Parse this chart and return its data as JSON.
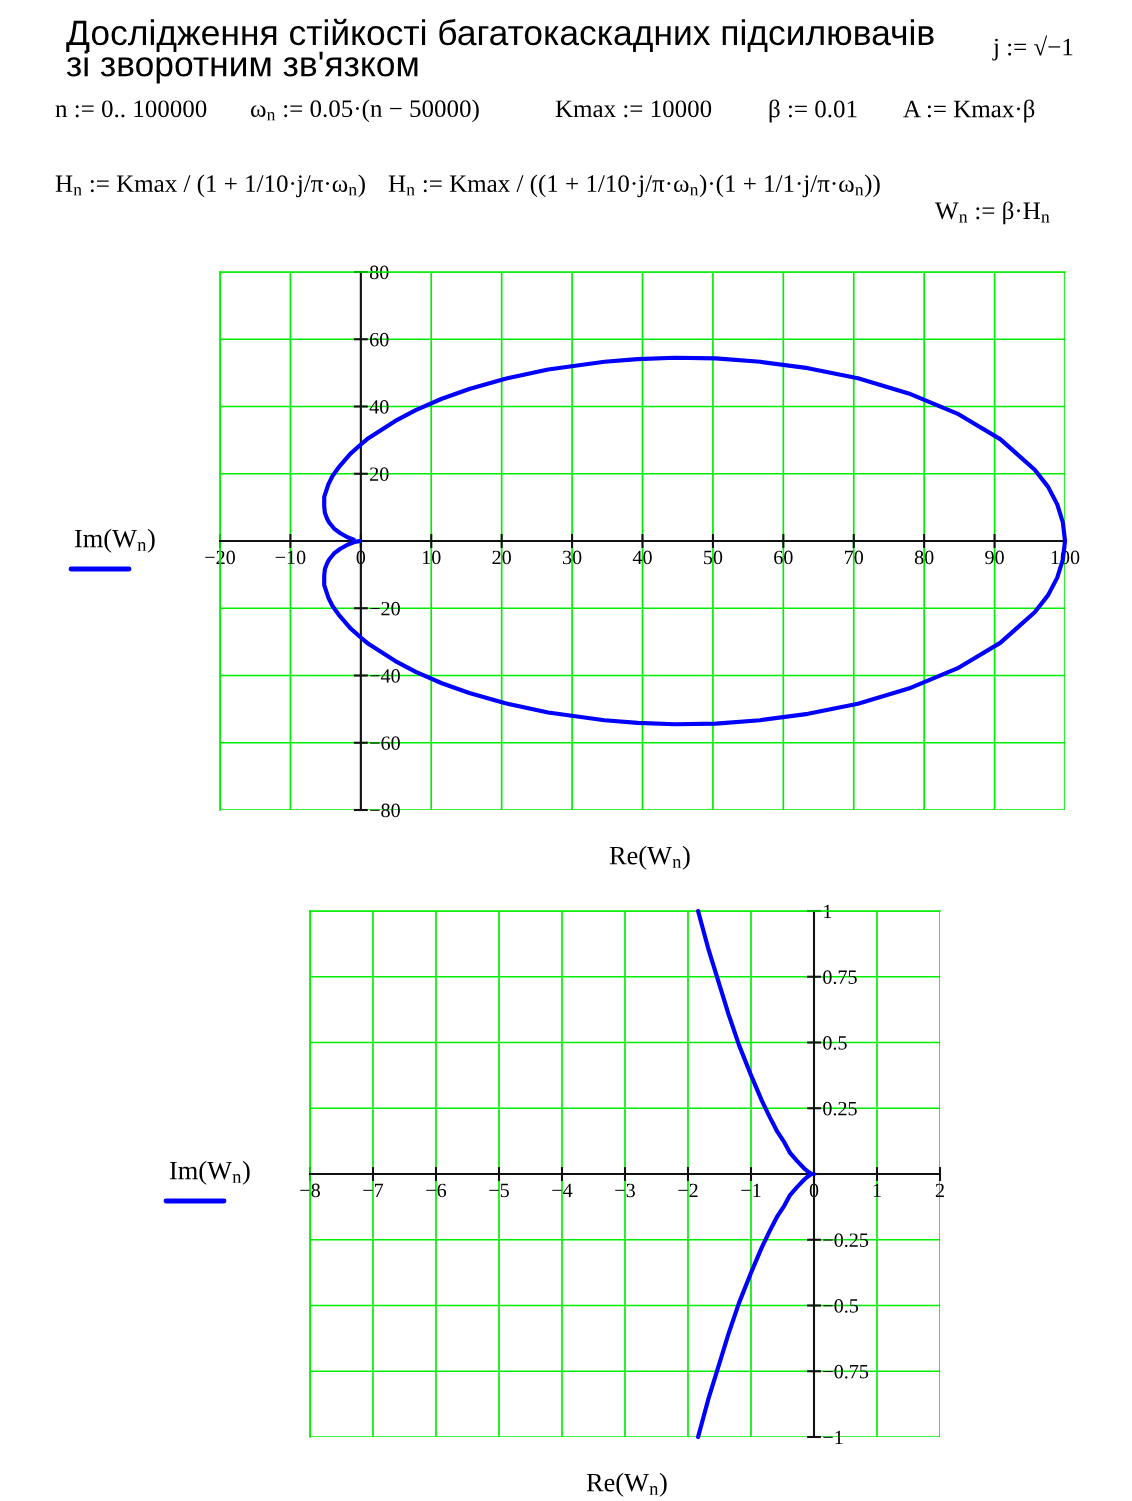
{
  "chart_data": [
    {
      "type": "line",
      "title": "Дослідження стійкості багатокаскадних підсилювачів\nзі зворотним зв'язком",
      "annotations": [
        "j := √−1",
        "n := 0.. 100000",
        "ω$_{n}$ := 0.05·(n − 50000)",
        "Kmax := 10000",
        "β := 0.01",
        "A := Kmax·β",
        "H$_{n}$ := Kmax / (1 + 1/10·j/π·ω$_{n}$)",
        "H$_{n}$ := Kmax / ((1 + 1/10·j/π·ω$_{n}$)·(1 + 1/1·j/π·ω$_{n}$))",
        "W$_{n}$ := β·H$_{n}$"
      ],
      "xlabel": "Re(W$_{n}$)",
      "ylabel": "Im(W$_{n}$)",
      "xlim": [
        -20,
        100
      ],
      "ylim": [
        -80,
        80
      ],
      "xticks": [
        {
          "value": -20,
          "label": "−20"
        },
        {
          "value": -10,
          "label": "−10"
        },
        0,
        10,
        20,
        30,
        40,
        50,
        60,
        70,
        80,
        90,
        100
      ],
      "yticks": [
        {
          "value": -80,
          "label": "−80"
        },
        {
          "value": -60,
          "label": "−60"
        },
        {
          "value": -40,
          "label": "−40"
        },
        {
          "value": -20,
          "label": "−20"
        },
        {
          "value": 0,
          "label": null
        },
        20,
        40,
        60,
        80
      ],
      "grid": true,
      "series": [
        {
          "color": "#0000ff",
          "x": [
            -1.0,
            -1.9,
            -2.9,
            -3.8,
            -4.5,
            -4.8,
            -5.1,
            -5.2,
            -5.2,
            -4.6,
            -4.0,
            -3.0,
            -1.5,
            0.0,
            0.9,
            4.9,
            7.8,
            11.5,
            15.4,
            20.4,
            26.6,
            34.6,
            39.3,
            44.6,
            50.4,
            56.7,
            63.5,
            70.6,
            77.8,
            84.7,
            90.8,
            95.7,
            97.6,
            98.9,
            99.7,
            100.0,
            99.7,
            98.9,
            97.6,
            95.7,
            90.8,
            84.7,
            77.8,
            70.6,
            63.5,
            56.7,
            50.4,
            44.6,
            39.3,
            34.6,
            26.6,
            20.4,
            15.4,
            11.5,
            7.8,
            4.9,
            0.9,
            0.0,
            -1.5,
            -3.0,
            -4.0,
            -4.6,
            -5.2,
            -5.2,
            -5.1,
            -4.8,
            -4.5,
            -3.8,
            -2.9,
            -1.9,
            -1.0,
            -0.4,
            -0.1
          ],
          "values": [
            0.4,
            1.1,
            2.3,
            3.7,
            5.5,
            6.7,
            8.3,
            10.3,
            13.1,
            16.9,
            19.4,
            22.3,
            25.9,
            28.7,
            30.3,
            35.7,
            38.9,
            42.3,
            45.2,
            48.2,
            51.0,
            53.3,
            54.1,
            54.5,
            54.3,
            53.3,
            51.4,
            48.4,
            43.9,
            37.9,
            30.3,
            21.2,
            16.1,
            10.9,
            5.5,
            0.0,
            -5.5,
            -10.9,
            -16.1,
            -21.2,
            -30.3,
            -37.9,
            -43.9,
            -48.4,
            -51.4,
            -53.3,
            -54.3,
            -54.5,
            -54.1,
            -53.3,
            -51.0,
            -48.2,
            -45.2,
            -42.3,
            -38.9,
            -35.7,
            -30.3,
            -28.7,
            -25.9,
            -22.3,
            -19.4,
            -16.9,
            -13.1,
            -10.3,
            -8.3,
            -6.7,
            -5.5,
            -3.7,
            -2.3,
            -1.1,
            -0.4,
            -0.1,
            0.0
          ]
        }
      ]
    },
    {
      "type": "line",
      "xlabel": "Re(W$_{n}$)",
      "ylabel": "Im(W$_{n}$)",
      "xlim": [
        -8,
        2
      ],
      "ylim": [
        -1,
        1
      ],
      "xticks": [
        {
          "value": -8,
          "label": "−8"
        },
        {
          "value": -7,
          "label": "−7"
        },
        {
          "value": -6,
          "label": "−6"
        },
        {
          "value": -5,
          "label": "−5"
        },
        {
          "value": -4,
          "label": "−4"
        },
        {
          "value": -3,
          "label": "−3"
        },
        {
          "value": -2,
          "label": "−2"
        },
        {
          "value": -1,
          "label": "−1"
        },
        0,
        1,
        2
      ],
      "yticks": [
        {
          "value": -1,
          "label": "−1"
        },
        {
          "value": -0.75,
          "label": "−0.75"
        },
        {
          "value": -0.5,
          "label": "−0.5"
        },
        {
          "value": -0.25,
          "label": "−0.25"
        },
        {
          "value": 0,
          "label": null
        },
        0.25,
        0.5,
        0.75,
        1
      ],
      "grid": true,
      "series": [
        {
          "color": "#0000ff",
          "x": [
            -1.84,
            -1.67,
            -1.45,
            -1.36,
            -1.19,
            -0.99,
            -0.83,
            -0.71,
            -0.58,
            -0.47,
            -0.38,
            -0.27,
            -0.15,
            -0.1,
            -0.04,
            0.0,
            -0.04,
            -0.1,
            -0.15,
            -0.27,
            -0.38,
            -0.47,
            -0.58,
            -0.71,
            -0.83,
            -0.99,
            -1.19,
            -1.36,
            -1.45,
            -1.67,
            -1.84
          ],
          "values": [
            1.0,
            0.85,
            0.68,
            0.61,
            0.49,
            0.37,
            0.28,
            0.22,
            0.16,
            0.12,
            0.08,
            0.05,
            0.02,
            0.01,
            0.0,
            0.0,
            0.0,
            -0.01,
            -0.02,
            -0.05,
            -0.08,
            -0.12,
            -0.16,
            -0.22,
            -0.28,
            -0.37,
            -0.49,
            -0.61,
            -0.68,
            -0.85,
            -1.0
          ]
        }
      ]
    }
  ]
}
